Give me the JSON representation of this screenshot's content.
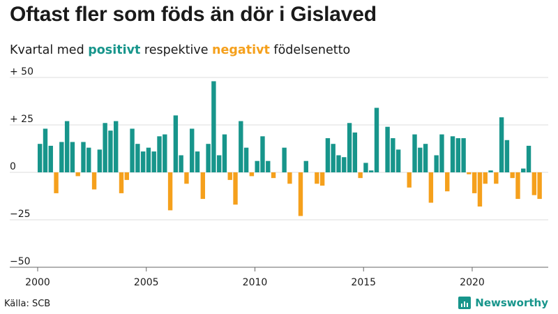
{
  "title": "Oftast fler som föds än dör i Gislaved",
  "subtitle": {
    "prefix": "Kvartal med ",
    "positive_word": "positivt",
    "middle": " respektive ",
    "negative_word": "negativt",
    "suffix": " födelsenetto"
  },
  "source": "Källa: SCB",
  "brand": "Newsworthy",
  "colors": {
    "positive": "#17958b",
    "negative": "#f5a01c",
    "grid": "#dddddd",
    "axis": "#666666"
  },
  "chart_data": {
    "type": "bar",
    "x_start": 2000.0,
    "x_step": 0.25,
    "ylim": [
      -50,
      50
    ],
    "xlim": [
      2000,
      2023.5
    ],
    "y_ticks": [
      {
        "value": 50,
        "label": "+ 50"
      },
      {
        "value": 25,
        "label": "+ 25"
      },
      {
        "value": 0,
        "label": "0"
      },
      {
        "value": -25,
        "label": "−25"
      },
      {
        "value": -50,
        "label": "−50"
      }
    ],
    "x_ticks": [
      {
        "value": 2000,
        "label": "2000"
      },
      {
        "value": 2005,
        "label": "2005"
      },
      {
        "value": 2010,
        "label": "2010"
      },
      {
        "value": 2015,
        "label": "2015"
      },
      {
        "value": 2020,
        "label": "2020"
      }
    ],
    "values": [
      15,
      23,
      14,
      -11,
      16,
      27,
      16,
      -2,
      16,
      13,
      -9,
      12,
      26,
      22,
      27,
      -11,
      -4,
      23,
      15,
      11,
      13,
      11,
      19,
      20,
      -20,
      30,
      9,
      -6,
      23,
      11,
      -14,
      15,
      48,
      9,
      20,
      -4,
      -17,
      27,
      13,
      -2,
      6,
      19,
      6,
      -3,
      0,
      13,
      -6,
      0,
      -23,
      6,
      0,
      -6,
      -7,
      18,
      15,
      9,
      8,
      26,
      21,
      -3,
      5,
      1,
      34,
      0,
      24,
      18,
      12,
      0,
      -8,
      20,
      13,
      15,
      -16,
      9,
      20,
      -10,
      19,
      18,
      18,
      -1,
      -11,
      -18,
      -6,
      1,
      -6,
      29,
      17,
      -3,
      -14,
      2,
      14,
      -12,
      -14
    ]
  }
}
